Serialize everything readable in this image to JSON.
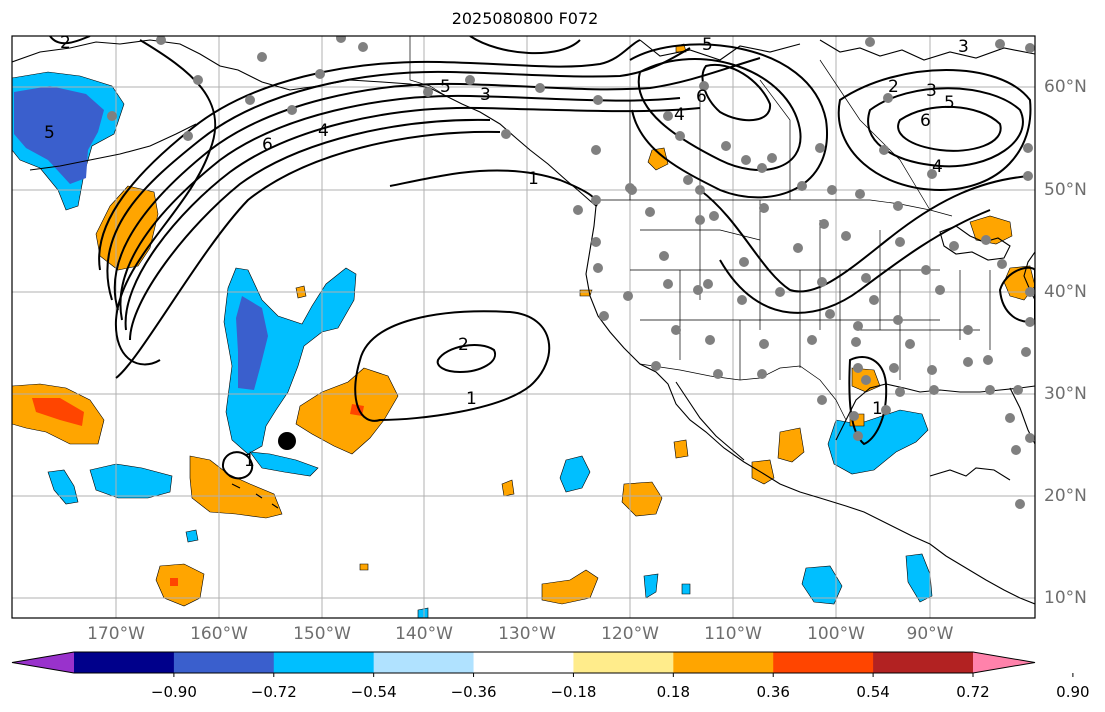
{
  "title": "2025080800 F072",
  "lon_labels": [
    "170°W",
    "160°W",
    "150°W",
    "140°W",
    "130°W",
    "120°W",
    "110°W",
    "100°W",
    "90°W"
  ],
  "lat_labels": [
    "60°N",
    "50°N",
    "40°N",
    "30°N",
    "20°N",
    "10°N"
  ],
  "contour_labels": [
    "6",
    "4",
    "5",
    "3",
    "1",
    "2",
    "1",
    "6",
    "4",
    "5",
    "6",
    "5",
    "3",
    "2",
    "4",
    "5",
    "3",
    "2",
    "1",
    "1"
  ],
  "colorbar": {
    "ticks": [
      "−0.90",
      "−0.72",
      "−0.54",
      "−0.36",
      "−0.18",
      "0.18",
      "0.36",
      "0.54",
      "0.72",
      "0.90"
    ],
    "colors": [
      "#9932cc",
      "#00008b",
      "#3a5fcd",
      "#00bfff",
      "#b0e2ff",
      "#ffffff",
      "#ffec8b",
      "#ffa500",
      "#ff4500",
      "#b22222",
      "#ff82ab"
    ]
  },
  "colors": {
    "light_blue": "#00bfff",
    "medium_blue": "#3a5fcd",
    "orange": "#ffa500",
    "red_orange": "#ff4500",
    "grid": "#b0b0b0",
    "station_dot": "#808080",
    "marker": "#000000"
  }
}
